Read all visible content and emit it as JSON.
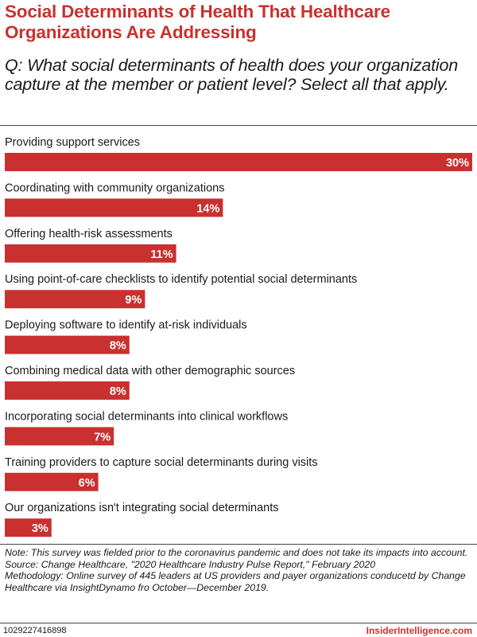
{
  "header": {
    "title": "Social Determinants of Health That Healthcare Organizations Are Addressing",
    "question": "Q: What social determinants of health does your organization capture at the member or patient level? Select all that apply."
  },
  "colors": {
    "bar": "#c8312f",
    "title": "#c8312f",
    "value_text": "#ffffff"
  },
  "chart_data": {
    "type": "bar",
    "orientation": "horizontal",
    "title": "Social Determinants of Health That Healthcare Organizations Are Addressing",
    "unit": "%",
    "categories": [
      "Providing support services",
      "Coordinating with community organizations",
      "Offering health-risk assessments",
      "Using point-of-care checklists to identify potential social determinants",
      "Deploying software to identify at-risk individuals",
      "Combining medical data with other demographic sources",
      "Incorporating social determinants into clinical workflows",
      "Training providers to capture social determinants during visits",
      "Our organizations isn't integrating social determinants"
    ],
    "values": [
      30,
      14,
      11,
      9,
      8,
      8,
      7,
      6,
      3
    ],
    "value_labels": [
      "30%",
      "14%",
      "11%",
      "9%",
      "8%",
      "8%",
      "7%",
      "6%",
      "3%"
    ],
    "xlim": [
      0,
      30
    ],
    "grid": false,
    "legend": "none"
  },
  "footer": {
    "note": "Note: This survey was fielded prior to the coronavirus pandemic and does not take its impacts into account.",
    "source": "Source: Change Healthcare, \"2020 Healthcare Industry Pulse Report,\" February 2020",
    "methodology": "Methodology: Online survey of 445 leaders at US providers and payer organizations conducetd by Change Healthcare via InsightDynamo fro October—December 2019.",
    "chart_id": "1029227416898",
    "brand": "InsiderIntelligence.com"
  }
}
